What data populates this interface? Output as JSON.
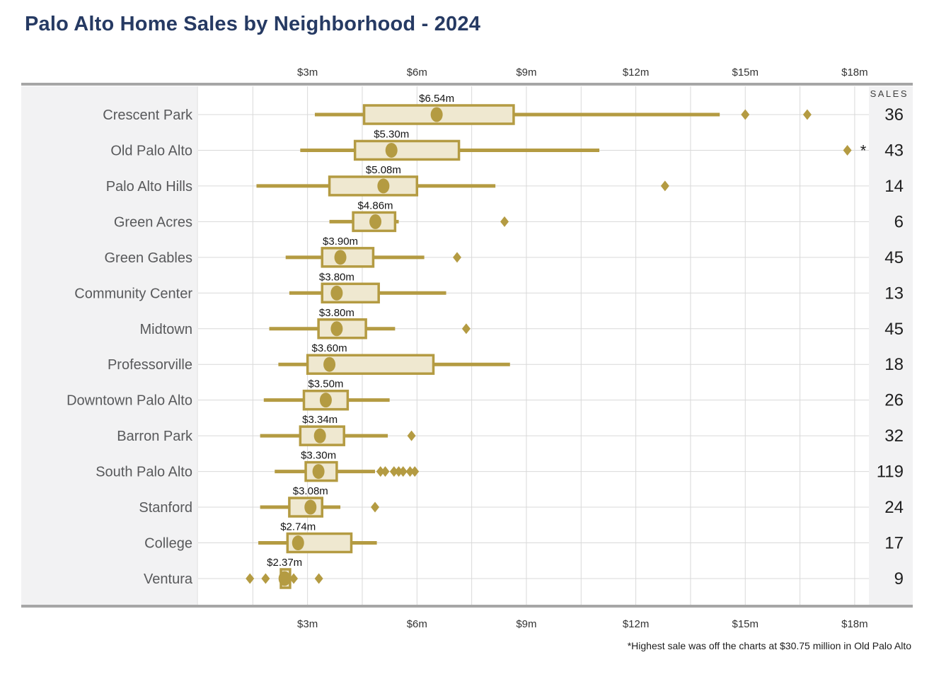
{
  "title": "Palo Alto Home Sales by Neighborhood - 2024",
  "footnote": "*Highest sale was off the charts at $30.75 million in Old Palo Alto",
  "sales_header": "SALES",
  "colors": {
    "title": "#263a63",
    "gold": "#b49b42",
    "box_fill": "#efe8d0",
    "label_text": "#58595b",
    "tick_text": "#333333",
    "value_text": "#1f1f1f",
    "grid": "#d9d9d9",
    "axis_bar": "#a6a6a6",
    "panel_bg": "#f2f2f3"
  },
  "chart_data": {
    "type": "boxplot-horizontal",
    "title": "Palo Alto Home Sales by Neighborhood - 2024",
    "x_unit": "million USD",
    "x_ticks": [
      "$3m",
      "$6m",
      "$9m",
      "$12m",
      "$15m",
      "$18m"
    ],
    "x_tick_values": [
      3,
      6,
      9,
      12,
      15,
      18
    ],
    "xlim": [
      0,
      18.4
    ],
    "gridline_step_m": 1.5,
    "legend_position": "none",
    "right_column_header": "SALES",
    "rows": [
      {
        "neighborhood": "Crescent Park",
        "sales": 36,
        "median_label": "$6.54m",
        "low": 3.2,
        "q1": 4.55,
        "median": 6.54,
        "q3": 8.65,
        "high": 14.3,
        "outliers": [
          15.0,
          16.7
        ]
      },
      {
        "neighborhood": "Old Palo Alto",
        "sales": 43,
        "median_label": "$5.30m",
        "low": 2.8,
        "q1": 4.3,
        "median": 5.3,
        "q3": 7.15,
        "high": 11.0,
        "outliers": [
          17.8
        ],
        "note": "*"
      },
      {
        "neighborhood": "Palo Alto Hills",
        "sales": 14,
        "median_label": "$5.08m",
        "low": 1.6,
        "q1": 3.6,
        "median": 5.08,
        "q3": 6.0,
        "high": 8.15,
        "outliers": [
          12.8
        ]
      },
      {
        "neighborhood": "Green Acres",
        "sales": 6,
        "median_label": "$4.86m",
        "low": 3.6,
        "q1": 4.25,
        "median": 4.86,
        "q3": 5.4,
        "high": 5.5,
        "outliers": [
          8.4
        ]
      },
      {
        "neighborhood": "Green Gables",
        "sales": 45,
        "median_label": "$3.90m",
        "low": 2.4,
        "q1": 3.4,
        "median": 3.9,
        "q3": 4.8,
        "high": 6.2,
        "outliers": [
          7.1
        ]
      },
      {
        "neighborhood": "Community Center",
        "sales": 13,
        "median_label": "$3.80m",
        "low": 2.5,
        "q1": 3.4,
        "median": 3.8,
        "q3": 4.95,
        "high": 6.8,
        "outliers": []
      },
      {
        "neighborhood": "Midtown",
        "sales": 45,
        "median_label": "$3.80m",
        "low": 1.95,
        "q1": 3.3,
        "median": 3.8,
        "q3": 4.6,
        "high": 5.4,
        "outliers": [
          7.35
        ]
      },
      {
        "neighborhood": "Professorville",
        "sales": 18,
        "median_label": "$3.60m",
        "low": 2.2,
        "q1": 3.0,
        "median": 3.6,
        "q3": 6.45,
        "high": 8.55,
        "outliers": []
      },
      {
        "neighborhood": "Downtown Palo Alto",
        "sales": 26,
        "median_label": "$3.50m",
        "low": 1.8,
        "q1": 2.9,
        "median": 3.5,
        "q3": 4.1,
        "high": 5.25,
        "outliers": []
      },
      {
        "neighborhood": "Barron Park",
        "sales": 32,
        "median_label": "$3.34m",
        "low": 1.7,
        "q1": 2.8,
        "median": 3.34,
        "q3": 4.0,
        "high": 5.2,
        "outliers": [
          5.85
        ]
      },
      {
        "neighborhood": "South Palo Alto",
        "sales": 119,
        "median_label": "$3.30m",
        "low": 2.1,
        "q1": 2.95,
        "median": 3.3,
        "q3": 3.8,
        "high": 4.85,
        "outliers": [
          5.0,
          5.13,
          5.37,
          5.5,
          5.62,
          5.81,
          5.94
        ]
      },
      {
        "neighborhood": "Stanford",
        "sales": 24,
        "median_label": "$3.08m",
        "low": 1.7,
        "q1": 2.5,
        "median": 3.08,
        "q3": 3.4,
        "high": 3.9,
        "outliers": [
          4.85
        ]
      },
      {
        "neighborhood": "College",
        "sales": 17,
        "median_label": "$2.74m",
        "low": 1.65,
        "q1": 2.45,
        "median": 2.74,
        "q3": 4.2,
        "high": 4.9,
        "outliers": []
      },
      {
        "neighborhood": "Ventura",
        "sales": 9,
        "median_label": "$2.37m",
        "low": 2.27,
        "q1": 2.27,
        "median": 2.37,
        "q3": 2.52,
        "high": 2.52,
        "outliers": [
          1.42,
          1.85,
          2.62,
          3.31
        ]
      }
    ]
  }
}
